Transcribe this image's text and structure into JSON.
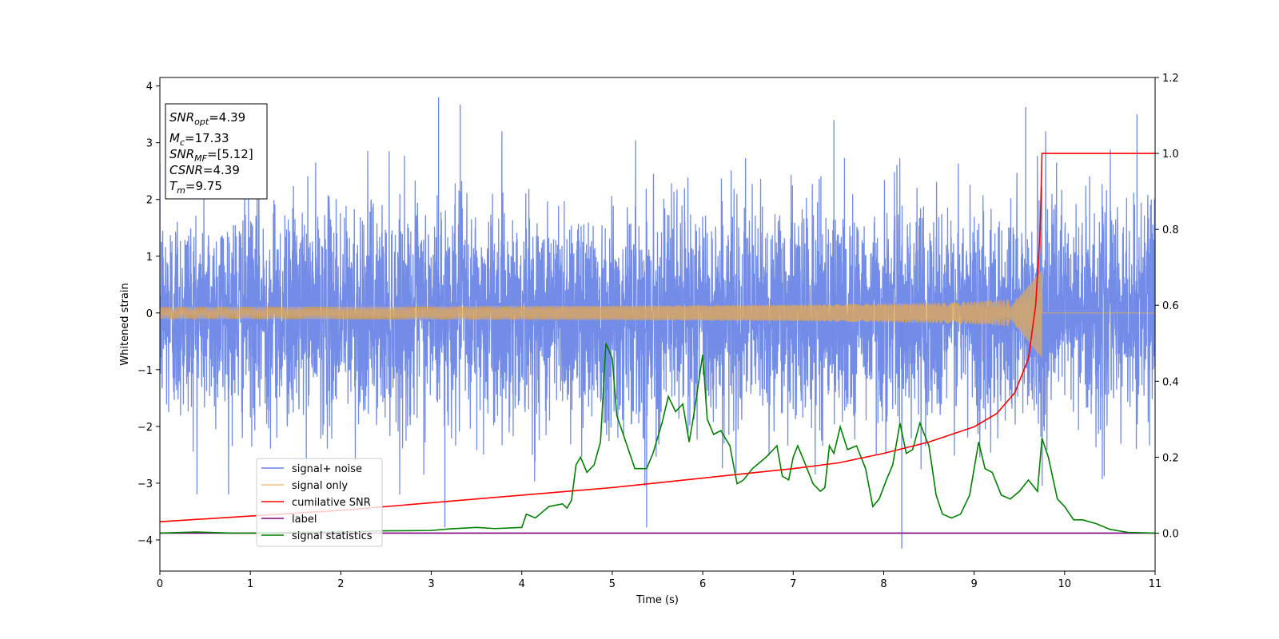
{
  "chart_data": {
    "type": "line",
    "xlabel": "Time (s)",
    "ylabel": "Whitened strain",
    "xlim": [
      0,
      11
    ],
    "ylim_left": [
      -4.55,
      4.15
    ],
    "ylim_right": [
      -0.1,
      1.2
    ],
    "x_ticks": [
      0,
      1,
      2,
      3,
      4,
      5,
      6,
      7,
      8,
      9,
      10,
      11
    ],
    "y_ticks_left": [
      -4,
      -3,
      -2,
      -1,
      0,
      1,
      2,
      3,
      4
    ],
    "y_ticks_right": [
      0.0,
      0.2,
      0.4,
      0.6,
      0.8,
      1.0,
      1.2
    ],
    "x_tick_labels": [
      "0",
      "1",
      "2",
      "3",
      "4",
      "5",
      "6",
      "7",
      "8",
      "9",
      "10",
      "11"
    ],
    "y_tick_labels_left": [
      "−4",
      "−3",
      "−2",
      "−1",
      "0",
      "1",
      "2",
      "3",
      "4"
    ],
    "y_tick_labels_right": [
      "0.0",
      "0.2",
      "0.4",
      "0.6",
      "0.8",
      "1.0",
      "1.2"
    ],
    "grid": false,
    "legend_position": "lower-left",
    "annotation": {
      "snr_opt": {
        "base": "SNR",
        "sub": "opt",
        "value": "=4.39"
      },
      "mc": {
        "base": "M",
        "sub": "c",
        "value": "=17.33"
      },
      "snr_mf": {
        "base": "SNR",
        "sub": "MF",
        "value": "=[5.12]"
      },
      "csnr": {
        "base": "CSNR",
        "sub": "",
        "value": "=4.39"
      },
      "tm": {
        "base": "T",
        "sub": "m",
        "value": "=9.75"
      }
    },
    "series": [
      {
        "name": "signal+ noise",
        "axis": "left",
        "color": "#6b86e6",
        "description": "whitened noise plus signal, roughly ±2.5 with spikes to ±3.8",
        "envelope": {
          "typical": 2.2,
          "max_peaks": [
            [
              3.08,
              3.8
            ],
            [
              3.32,
              3.67
            ],
            [
              9.57,
              3.63
            ],
            [
              10.8,
              3.5
            ],
            [
              7.45,
              3.4
            ],
            [
              8.2,
              -4.15
            ],
            [
              3.15,
              -3.78
            ],
            [
              5.38,
              -3.78
            ]
          ]
        }
      },
      {
        "name": "signal only",
        "axis": "left",
        "color": "#e8a94f",
        "description": "chirp signal growing toward merger at t≈9.75",
        "merger_time": 9.75,
        "peak_amplitude": 0.75
      },
      {
        "name": "cumilative SNR",
        "axis": "right",
        "color": "#ff0000",
        "points": [
          [
            0.0,
            0.03
          ],
          [
            1.0,
            0.045
          ],
          [
            2.0,
            0.06
          ],
          [
            3.0,
            0.08
          ],
          [
            4.0,
            0.1
          ],
          [
            5.0,
            0.12
          ],
          [
            6.0,
            0.145
          ],
          [
            7.0,
            0.17
          ],
          [
            7.5,
            0.185
          ],
          [
            8.0,
            0.21
          ],
          [
            8.5,
            0.24
          ],
          [
            9.0,
            0.28
          ],
          [
            9.25,
            0.315
          ],
          [
            9.45,
            0.37
          ],
          [
            9.6,
            0.46
          ],
          [
            9.68,
            0.6
          ],
          [
            9.73,
            0.8
          ],
          [
            9.75,
            1.0
          ],
          [
            11.0,
            1.0
          ]
        ]
      },
      {
        "name": "label",
        "axis": "right",
        "color": "#800080",
        "points": [
          [
            0.0,
            0.0
          ],
          [
            11.0,
            0.0
          ]
        ]
      },
      {
        "name": "signal statistics",
        "axis": "right",
        "color": "#008000",
        "points": [
          [
            0.0,
            0.0
          ],
          [
            0.4,
            0.003
          ],
          [
            0.8,
            0.0
          ],
          [
            1.0,
            0.0
          ],
          [
            1.5,
            0.002
          ],
          [
            2.0,
            0.003
          ],
          [
            2.5,
            0.006
          ],
          [
            3.0,
            0.007
          ],
          [
            3.2,
            0.011
          ],
          [
            3.5,
            0.015
          ],
          [
            3.7,
            0.012
          ],
          [
            4.0,
            0.015
          ],
          [
            4.05,
            0.05
          ],
          [
            4.15,
            0.04
          ],
          [
            4.3,
            0.07
          ],
          [
            4.45,
            0.077
          ],
          [
            4.5,
            0.066
          ],
          [
            4.55,
            0.087
          ],
          [
            4.6,
            0.18
          ],
          [
            4.65,
            0.2
          ],
          [
            4.72,
            0.16
          ],
          [
            4.8,
            0.18
          ],
          [
            4.87,
            0.24
          ],
          [
            4.93,
            0.5
          ],
          [
            5.0,
            0.46
          ],
          [
            5.05,
            0.31
          ],
          [
            5.15,
            0.24
          ],
          [
            5.25,
            0.17
          ],
          [
            5.38,
            0.17
          ],
          [
            5.45,
            0.21
          ],
          [
            5.55,
            0.29
          ],
          [
            5.62,
            0.36
          ],
          [
            5.7,
            0.32
          ],
          [
            5.78,
            0.34
          ],
          [
            5.85,
            0.24
          ],
          [
            5.9,
            0.31
          ],
          [
            5.95,
            0.39
          ],
          [
            6.0,
            0.47
          ],
          [
            6.05,
            0.3
          ],
          [
            6.12,
            0.26
          ],
          [
            6.2,
            0.27
          ],
          [
            6.3,
            0.23
          ],
          [
            6.38,
            0.13
          ],
          [
            6.45,
            0.14
          ],
          [
            6.55,
            0.17
          ],
          [
            6.7,
            0.2
          ],
          [
            6.82,
            0.23
          ],
          [
            6.88,
            0.15
          ],
          [
            6.95,
            0.14
          ],
          [
            7.0,
            0.2
          ],
          [
            7.05,
            0.23
          ],
          [
            7.12,
            0.19
          ],
          [
            7.22,
            0.13
          ],
          [
            7.3,
            0.11
          ],
          [
            7.35,
            0.12
          ],
          [
            7.4,
            0.23
          ],
          [
            7.45,
            0.21
          ],
          [
            7.52,
            0.28
          ],
          [
            7.6,
            0.22
          ],
          [
            7.7,
            0.23
          ],
          [
            7.8,
            0.17
          ],
          [
            7.88,
            0.07
          ],
          [
            7.95,
            0.09
          ],
          [
            8.03,
            0.14
          ],
          [
            8.1,
            0.18
          ],
          [
            8.18,
            0.29
          ],
          [
            8.25,
            0.21
          ],
          [
            8.32,
            0.22
          ],
          [
            8.4,
            0.29
          ],
          [
            8.5,
            0.23
          ],
          [
            8.58,
            0.1
          ],
          [
            8.65,
            0.05
          ],
          [
            8.75,
            0.04
          ],
          [
            8.85,
            0.05
          ],
          [
            8.95,
            0.1
          ],
          [
            9.05,
            0.24
          ],
          [
            9.12,
            0.17
          ],
          [
            9.2,
            0.16
          ],
          [
            9.3,
            0.1
          ],
          [
            9.4,
            0.09
          ],
          [
            9.5,
            0.11
          ],
          [
            9.6,
            0.14
          ],
          [
            9.7,
            0.11
          ],
          [
            9.75,
            0.25
          ],
          [
            9.82,
            0.2
          ],
          [
            9.92,
            0.09
          ],
          [
            10.0,
            0.07
          ],
          [
            10.1,
            0.035
          ],
          [
            10.2,
            0.035
          ],
          [
            10.35,
            0.025
          ],
          [
            10.5,
            0.01
          ],
          [
            10.7,
            0.002
          ],
          [
            11.0,
            0.0
          ]
        ]
      }
    ]
  }
}
